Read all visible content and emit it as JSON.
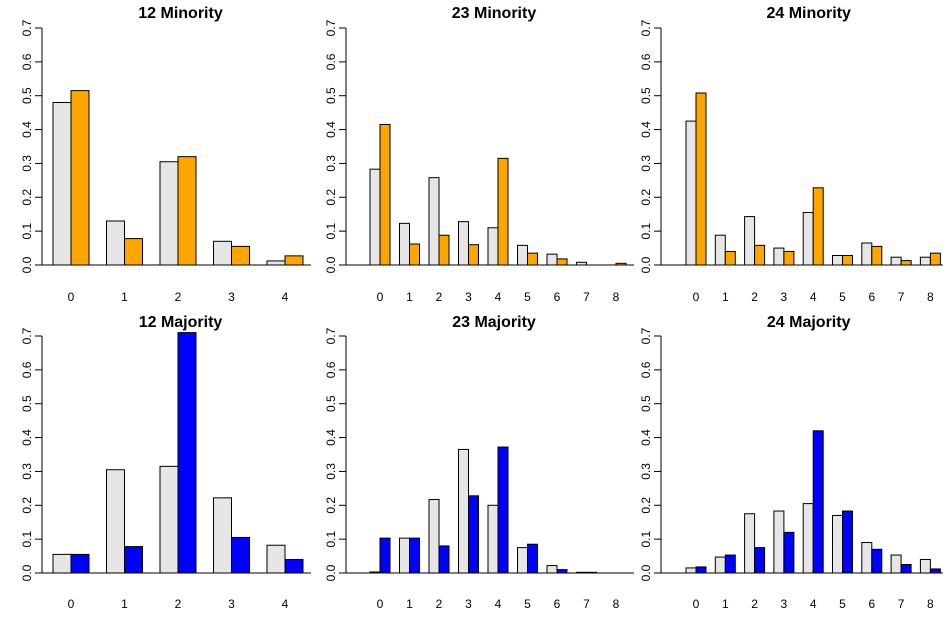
{
  "chart_data": [
    {
      "type": "bar",
      "title": "12 Minority",
      "categories": [
        "0",
        "1",
        "2",
        "3",
        "4"
      ],
      "ylim": [
        0,
        0.7
      ],
      "yticks": [
        "0.0",
        "0.1",
        "0.2",
        "0.3",
        "0.4",
        "0.5",
        "0.6",
        "0.7"
      ],
      "series": [
        {
          "values": [
            0.48,
            0.13,
            0.305,
            0.07,
            0.012
          ],
          "color": "#e6e6e6"
        },
        {
          "values": [
            0.515,
            0.078,
            0.32,
            0.055,
            0.027
          ],
          "color": "#ffa500"
        }
      ]
    },
    {
      "type": "bar",
      "title": "23 Minority",
      "categories": [
        "0",
        "1",
        "2",
        "3",
        "4",
        "5",
        "6",
        "7",
        "8"
      ],
      "ylim": [
        0,
        0.7
      ],
      "yticks": [
        "0.0",
        "0.1",
        "0.2",
        "0.3",
        "0.4",
        "0.5",
        "0.6",
        "0.7"
      ],
      "series": [
        {
          "values": [
            0.283,
            0.123,
            0.258,
            0.128,
            0.11,
            0.058,
            0.032,
            0.008,
            0.0
          ],
          "color": "#e6e6e6"
        },
        {
          "values": [
            0.415,
            0.062,
            0.088,
            0.06,
            0.315,
            0.035,
            0.018,
            0.0,
            0.005
          ],
          "color": "#ffa500"
        }
      ]
    },
    {
      "type": "bar",
      "title": "24 Minority",
      "categories": [
        "0",
        "1",
        "2",
        "3",
        "4",
        "5",
        "6",
        "7",
        "8"
      ],
      "ylim": [
        0,
        0.7
      ],
      "yticks": [
        "0.0",
        "0.1",
        "0.2",
        "0.3",
        "0.4",
        "0.5",
        "0.6",
        "0.7"
      ],
      "series": [
        {
          "values": [
            0.425,
            0.088,
            0.143,
            0.05,
            0.155,
            0.028,
            0.065,
            0.023,
            0.023
          ],
          "color": "#e6e6e6"
        },
        {
          "values": [
            0.508,
            0.04,
            0.058,
            0.04,
            0.228,
            0.028,
            0.055,
            0.013,
            0.035
          ],
          "color": "#ffa500"
        }
      ]
    },
    {
      "type": "bar",
      "title": "12 Majority",
      "categories": [
        "0",
        "1",
        "2",
        "3",
        "4"
      ],
      "ylim": [
        0,
        0.7
      ],
      "yticks": [
        "0.0",
        "0.1",
        "0.2",
        "0.3",
        "0.4",
        "0.5",
        "0.6",
        "0.7"
      ],
      "series": [
        {
          "values": [
            0.055,
            0.305,
            0.315,
            0.222,
            0.082
          ],
          "color": "#e6e6e6"
        },
        {
          "values": [
            0.055,
            0.078,
            0.71,
            0.105,
            0.04
          ],
          "color": "#0000ff"
        }
      ]
    },
    {
      "type": "bar",
      "title": "23 Majority",
      "categories": [
        "0",
        "1",
        "2",
        "3",
        "4",
        "5",
        "6",
        "7",
        "8"
      ],
      "ylim": [
        0,
        0.7
      ],
      "yticks": [
        "0.0",
        "0.1",
        "0.2",
        "0.3",
        "0.4",
        "0.5",
        "0.6",
        "0.7"
      ],
      "series": [
        {
          "values": [
            0.003,
            0.103,
            0.217,
            0.365,
            0.2,
            0.075,
            0.022,
            0.002,
            0.0
          ],
          "color": "#e6e6e6"
        },
        {
          "values": [
            0.103,
            0.103,
            0.08,
            0.228,
            0.372,
            0.085,
            0.01,
            0.002,
            0.0
          ],
          "color": "#0000ff"
        }
      ]
    },
    {
      "type": "bar",
      "title": "24 Majority",
      "categories": [
        "0",
        "1",
        "2",
        "3",
        "4",
        "5",
        "6",
        "7",
        "8"
      ],
      "ylim": [
        0,
        0.7
      ],
      "yticks": [
        "0.0",
        "0.1",
        "0.2",
        "0.3",
        "0.4",
        "0.5",
        "0.6",
        "0.7"
      ],
      "series": [
        {
          "values": [
            0.015,
            0.047,
            0.175,
            0.183,
            0.205,
            0.17,
            0.09,
            0.053,
            0.04
          ],
          "color": "#e6e6e6"
        },
        {
          "values": [
            0.018,
            0.053,
            0.075,
            0.12,
            0.42,
            0.183,
            0.07,
            0.025,
            0.012
          ],
          "color": "#0000ff"
        }
      ]
    }
  ]
}
